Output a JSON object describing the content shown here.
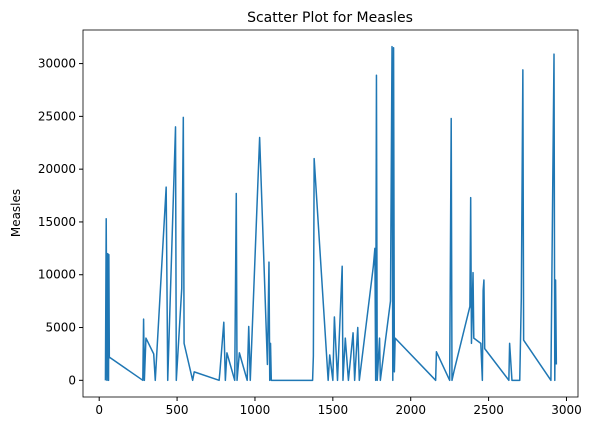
{
  "chart_data": {
    "type": "line",
    "title": "Scatter Plot for Measles",
    "y_label": "Measles",
    "x": [
      40,
      45,
      50,
      55,
      60,
      62,
      65,
      280,
      285,
      290,
      300,
      350,
      360,
      430,
      440,
      490,
      495,
      530,
      540,
      545,
      600,
      610,
      770,
      775,
      800,
      810,
      820,
      870,
      880,
      885,
      900,
      950,
      960,
      970,
      1030,
      1080,
      1090,
      1095,
      1100,
      1105,
      1370,
      1375,
      1380,
      1470,
      1480,
      1500,
      1510,
      1530,
      1560,
      1565,
      1580,
      1600,
      1620,
      1630,
      1640,
      1660,
      1670,
      1760,
      1770,
      1775,
      1780,
      1785,
      1800,
      1805,
      1870,
      1880,
      1885,
      1890,
      1895,
      1900,
      2160,
      2165,
      2250,
      2260,
      2265,
      2280,
      2380,
      2385,
      2390,
      2400,
      2405,
      2450,
      2460,
      2465,
      2470,
      2475,
      2630,
      2635,
      2650,
      2700,
      2710,
      2720,
      2725,
      2900,
      2910,
      2920,
      2925,
      2930,
      2935
    ],
    "values": [
      0,
      15300,
      0,
      12000,
      0,
      11900,
      2200,
      0,
      5800,
      0,
      4000,
      2500,
      0,
      18300,
      0,
      24000,
      0,
      8700,
      24900,
      3500,
      0,
      800,
      0,
      800,
      5500,
      0,
      2600,
      0,
      17700,
      0,
      2600,
      0,
      5100,
      0,
      23000,
      1500,
      11200,
      0,
      3500,
      0,
      0,
      2300,
      21000,
      0,
      2400,
      0,
      6000,
      0,
      10800,
      0,
      4000,
      0,
      3000,
      4500,
      0,
      5000,
      0,
      10800,
      12500,
      0,
      28900,
      0,
      4000,
      0,
      7500,
      31600,
      0,
      31500,
      800,
      4000,
      0,
      2700,
      0,
      24800,
      0,
      1000,
      7000,
      17300,
      3500,
      10200,
      4000,
      3500,
      0,
      8500,
      9500,
      3000,
      0,
      3500,
      0,
      0,
      7800,
      29400,
      3800,
      0,
      15700,
      30900,
      0,
      9500,
      1500
    ],
    "color": "#1f77b4",
    "xlim": [
      -104,
      3074
    ],
    "xticks": [
      0,
      500,
      1000,
      1500,
      2000,
      2500,
      3000
    ],
    "ylim": [
      -1580,
      33180
    ],
    "yticks": [
      0,
      5000,
      10000,
      15000,
      20000,
      25000,
      30000
    ]
  }
}
